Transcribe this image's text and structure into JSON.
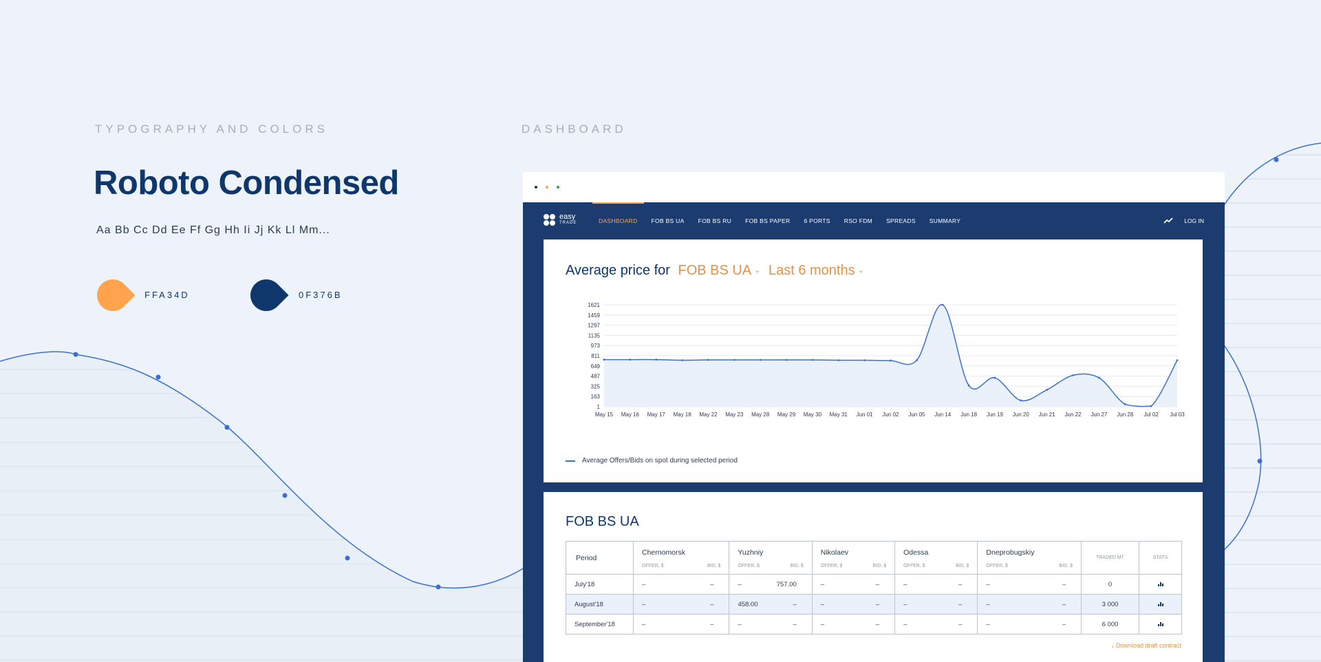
{
  "sections": {
    "typography_label": "TYPOGRAPHY AND COLORS",
    "dashboard_label": "DASHBOARD"
  },
  "typography": {
    "font_name": "Roboto Condensed",
    "alphabet": "Aa Bb Cc Dd Ee Ff Gg Hh Ii Jj Kk Ll Mm..."
  },
  "colors": [
    {
      "code": "FFA34D",
      "hex": "#ffa34d"
    },
    {
      "code": "0F376B",
      "hex": "#0f376b"
    }
  ],
  "window": {
    "dots": [
      "#0f376b",
      "#ffa34d",
      "#2f9e55"
    ]
  },
  "nav": {
    "logo_top": "easy",
    "logo_bottom": "TRADE",
    "items": [
      "DASHBOARD",
      "FOB BS UA",
      "FOB BS RU",
      "FOB BS PAPER",
      "6 PORTS",
      "RSO FDM",
      "SPREADS",
      "SUMMARY"
    ],
    "active_index": 0,
    "trend_icon": "trend-icon",
    "login": "LOG IN"
  },
  "chart_card": {
    "title_prefix": "Average price for",
    "market_dropdown": "FOB BS UA",
    "period_dropdown": "Last 6 months",
    "chevron_icon": "chevron-down-icon"
  },
  "chart_data": {
    "type": "area",
    "categories": [
      "May 15",
      "May 16",
      "May 17",
      "May 18",
      "May 22",
      "May 23",
      "May 28",
      "May 29",
      "May 30",
      "May 31",
      "Jun 01",
      "Jun 02",
      "Jun 05",
      "Jun 14",
      "Jun 18",
      "Jun 19",
      "Jun 20",
      "Jun 21",
      "Jun 22",
      "Jun 27",
      "Jun 28",
      "Jul 02",
      "Jul 03"
    ],
    "y_ticks": [
      1,
      163,
      325,
      487,
      649,
      811,
      973,
      1135,
      1297,
      1459,
      1621
    ],
    "ylim": [
      1,
      1621
    ],
    "series": [
      {
        "name": "Average Offers/Bids on spot during selected period",
        "color": "#3a6fd1",
        "values": [
          750,
          750,
          750,
          740,
          745,
          745,
          745,
          745,
          745,
          740,
          740,
          735,
          740,
          1621,
          340,
          460,
          100,
          270,
          500,
          460,
          40,
          10,
          740
        ]
      }
    ],
    "grid": true,
    "legend_position": "bottom-left"
  },
  "table_card": {
    "title": "FOB BS UA",
    "period_header": "Period",
    "ports": [
      "Chernomorsk",
      "Yuzhniy",
      "Nikolaev",
      "Odessa",
      "Dneprobugskiy"
    ],
    "offer_label": "OFFER, $",
    "bid_label": "BID, $",
    "traded_header": "TRADED MT",
    "stats_header": "STATS",
    "rows": [
      {
        "period": "July'18",
        "cells": [
          "–",
          "–",
          "–",
          "757.00",
          "–",
          "–",
          "–",
          "–",
          "–",
          "–"
        ],
        "traded": "0"
      },
      {
        "period": "August'18",
        "cells": [
          "–",
          "–",
          "458.00",
          "–",
          "–",
          "–",
          "–",
          "–",
          "–",
          "–"
        ],
        "traded": "3 000"
      },
      {
        "period": "September'18",
        "cells": [
          "–",
          "–",
          "–",
          "–",
          "–",
          "–",
          "–",
          "–",
          "–",
          "–"
        ],
        "traded": "6 000"
      }
    ],
    "highlight_row": 1,
    "stats_icon": "bar-chart-icon",
    "download_icon": "arrow-down-icon",
    "download_label": "Download draft contract"
  }
}
